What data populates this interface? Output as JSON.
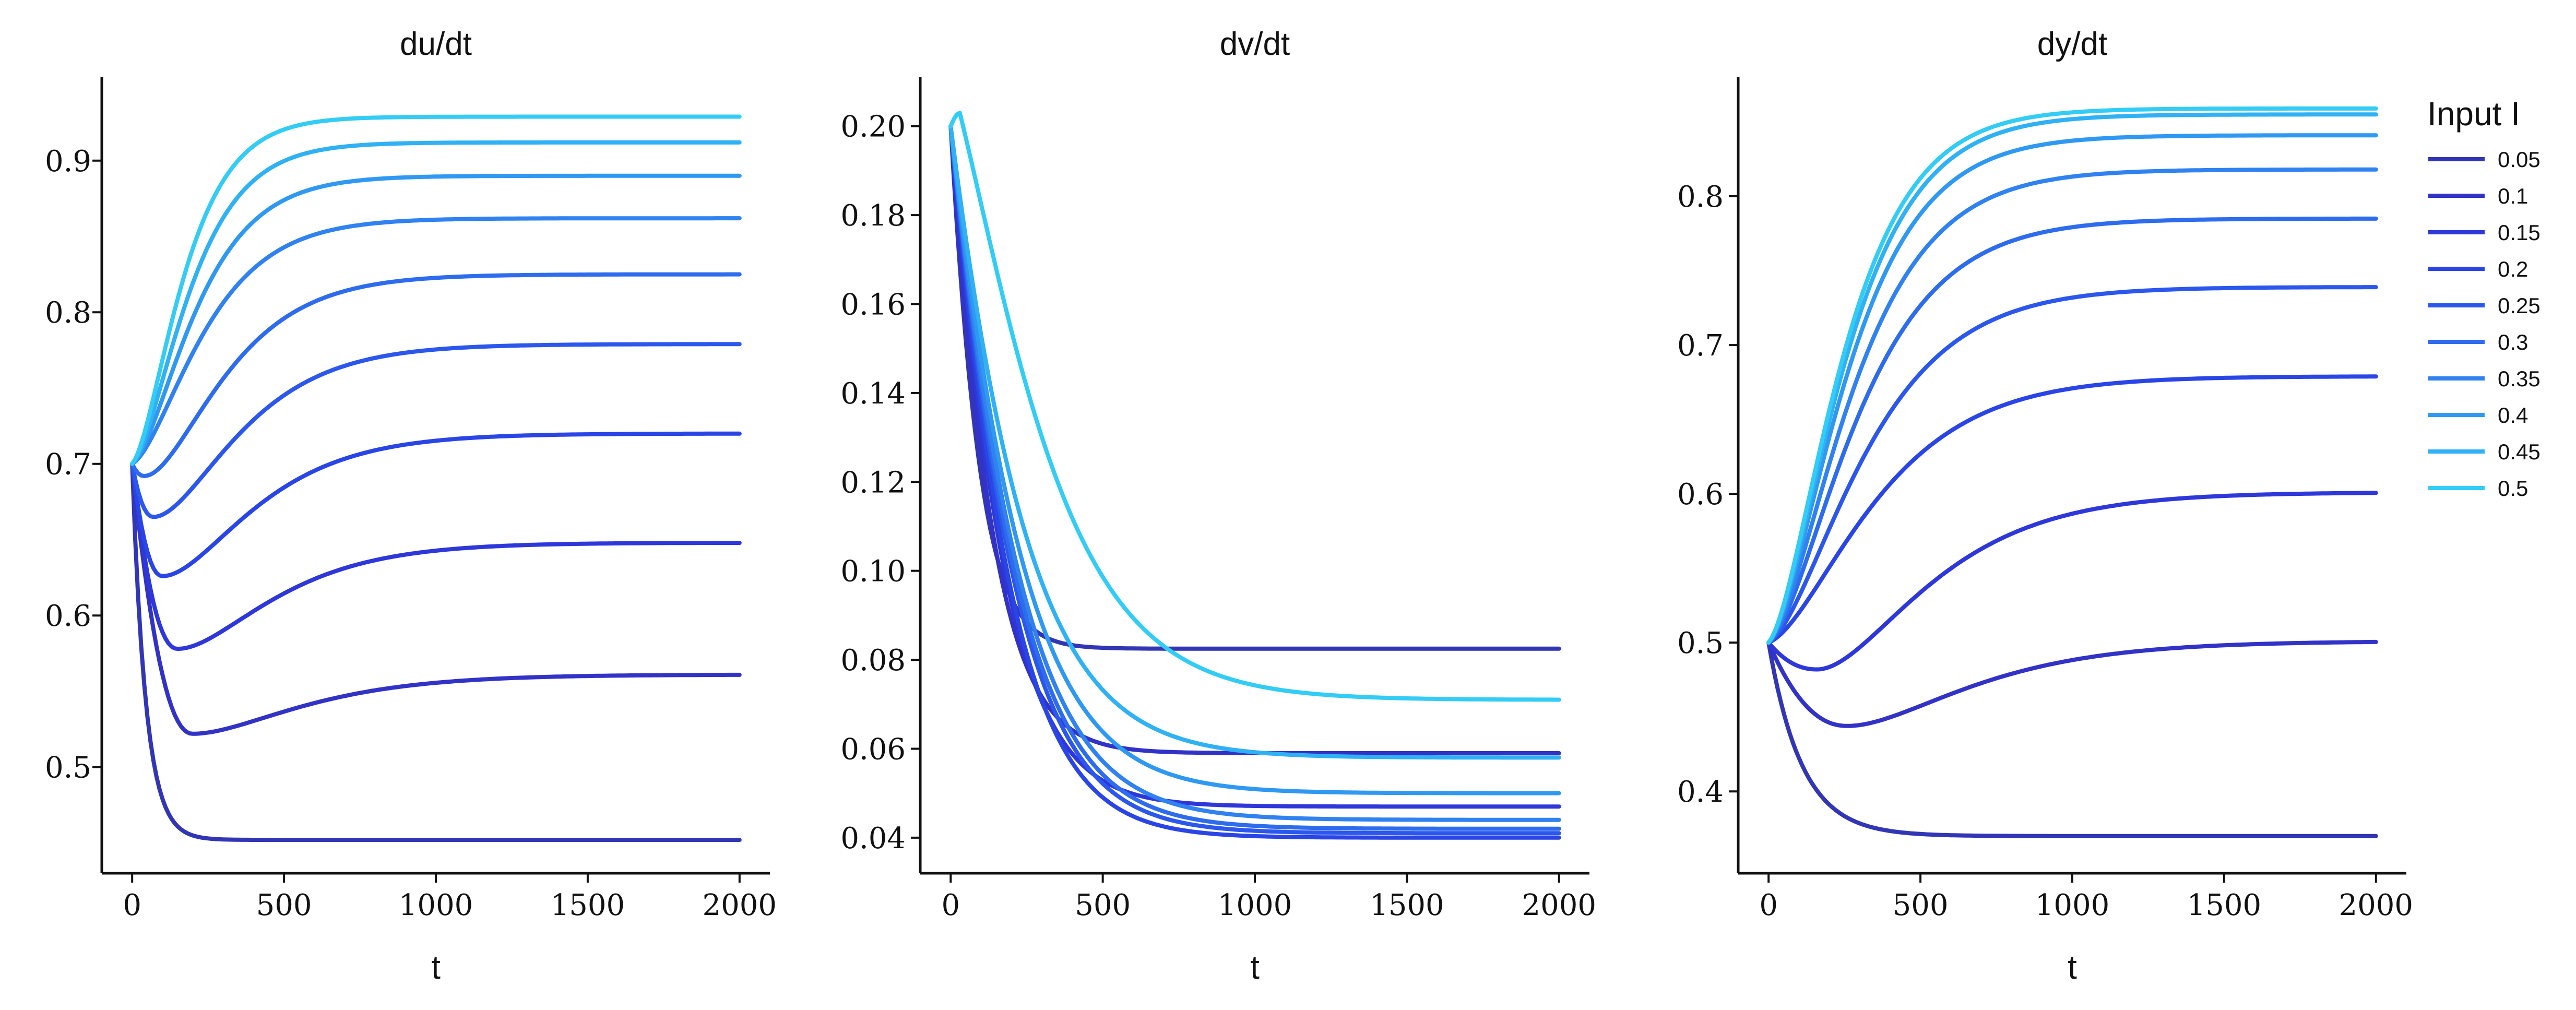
{
  "chart_data": [
    {
      "type": "line",
      "title": "du/dt",
      "xlabel": "t",
      "ylabel": "",
      "xlim": [
        -100,
        2100
      ],
      "ylim": [
        0.43,
        0.955
      ],
      "xticks": [
        0,
        500,
        1000,
        1500,
        2000
      ],
      "yticks": [
        0.5,
        0.6,
        0.7,
        0.8,
        0.9
      ],
      "ytick_labels": [
        "0.5",
        "0.6",
        "0.7",
        "0.8",
        "0.9"
      ],
      "series": [
        {
          "name": "0.05",
          "start": 0.7,
          "final": 0.452,
          "dip": null,
          "dip_t": null,
          "shape": "fast",
          "tau": 45
        },
        {
          "name": "0.1",
          "start": 0.7,
          "final": 0.561,
          "dip": 0.522,
          "dip_t": 200,
          "shape": "dip",
          "tau_rise": 230
        },
        {
          "name": "0.15",
          "start": 0.7,
          "final": 0.648,
          "dip": 0.578,
          "dip_t": 150,
          "shape": "dip",
          "tau_rise": 200
        },
        {
          "name": "0.2",
          "start": 0.7,
          "final": 0.72,
          "dip": 0.626,
          "dip_t": 100,
          "shape": "dip",
          "tau_rise": 190
        },
        {
          "name": "0.25",
          "start": 0.7,
          "final": 0.779,
          "dip": 0.665,
          "dip_t": 70,
          "shape": "dip",
          "tau_rise": 175
        },
        {
          "name": "0.3",
          "start": 0.7,
          "final": 0.825,
          "dip": 0.692,
          "dip_t": 40,
          "shape": "dip",
          "tau_rise": 160
        },
        {
          "name": "0.35",
          "start": 0.7,
          "final": 0.862,
          "dip": null,
          "dip_t": null,
          "shape": "sigmoid",
          "tau": 140
        },
        {
          "name": "0.4",
          "start": 0.7,
          "final": 0.89,
          "dip": null,
          "dip_t": null,
          "shape": "sigmoid",
          "tau": 125
        },
        {
          "name": "0.45",
          "start": 0.7,
          "final": 0.912,
          "dip": null,
          "dip_t": null,
          "shape": "sigmoid",
          "tau": 112
        },
        {
          "name": "0.5",
          "start": 0.7,
          "final": 0.929,
          "dip": null,
          "dip_t": null,
          "shape": "sigmoid",
          "tau": 100
        }
      ]
    },
    {
      "type": "line",
      "title": "dv/dt",
      "xlabel": "t",
      "ylabel": "",
      "xlim": [
        -100,
        2100
      ],
      "ylim": [
        0.032,
        0.211
      ],
      "xticks": [
        0,
        500,
        1000,
        1500,
        2000
      ],
      "yticks": [
        0.04,
        0.06,
        0.08,
        0.1,
        0.12,
        0.14,
        0.16,
        0.18,
        0.2
      ],
      "ytick_labels": [
        "0.04",
        "0.06",
        "0.08",
        "0.10",
        "0.12",
        "0.14",
        "0.16",
        "0.18",
        "0.20"
      ],
      "series": [
        {
          "name": "0.05",
          "start": 0.2,
          "final": 0.0825,
          "tau": 65,
          "peak": null
        },
        {
          "name": "0.1",
          "start": 0.2,
          "final": 0.059,
          "tau": 95,
          "peak": null
        },
        {
          "name": "0.15",
          "start": 0.2,
          "final": 0.047,
          "tau": 120,
          "peak": null
        },
        {
          "name": "0.2",
          "start": 0.2,
          "final": 0.04,
          "tau": 135,
          "peak": null
        },
        {
          "name": "0.25",
          "start": 0.2,
          "final": 0.041,
          "tau": 145,
          "peak": null
        },
        {
          "name": "0.3",
          "start": 0.2,
          "final": 0.042,
          "tau": 150,
          "peak": null
        },
        {
          "name": "0.35",
          "start": 0.2,
          "final": 0.044,
          "tau": 155,
          "peak": null
        },
        {
          "name": "0.4",
          "start": 0.2,
          "final": 0.05,
          "tau": 160,
          "peak": null
        },
        {
          "name": "0.45",
          "start": 0.2,
          "final": 0.058,
          "tau": 170,
          "peak": null
        },
        {
          "name": "0.5",
          "start": 0.2,
          "final": 0.071,
          "tau": 190,
          "peak": 0.203
        }
      ]
    },
    {
      "type": "line",
      "title": "dy/dt",
      "xlabel": "t",
      "ylabel": "",
      "xlim": [
        -100,
        2100
      ],
      "ylim": [
        0.345,
        0.88
      ],
      "xticks": [
        0,
        500,
        1000,
        1500,
        2000
      ],
      "yticks": [
        0.4,
        0.5,
        0.6,
        0.7,
        0.8
      ],
      "ytick_labels": [
        "0.4",
        "0.5",
        "0.6",
        "0.7",
        "0.8"
      ],
      "series": [
        {
          "name": "0.05",
          "start": 0.5,
          "final": 0.37,
          "dip": null,
          "dip_t": null,
          "shape": "fast",
          "tau": 110
        },
        {
          "name": "0.1",
          "start": 0.5,
          "final": 0.501,
          "dip": 0.444,
          "dip_t": 260,
          "shape": "dip",
          "tau_rise": 260
        },
        {
          "name": "0.15",
          "start": 0.5,
          "final": 0.601,
          "dip": 0.482,
          "dip_t": 160,
          "shape": "dip",
          "tau_rise": 230
        },
        {
          "name": "0.2",
          "start": 0.5,
          "final": 0.679,
          "dip": null,
          "dip_t": null,
          "shape": "sigmoid",
          "tau": 210
        },
        {
          "name": "0.25",
          "start": 0.5,
          "final": 0.739,
          "dip": null,
          "dip_t": null,
          "shape": "sigmoid",
          "tau": 190
        },
        {
          "name": "0.3",
          "start": 0.5,
          "final": 0.785,
          "dip": null,
          "dip_t": null,
          "shape": "sigmoid",
          "tau": 175
        },
        {
          "name": "0.35",
          "start": 0.5,
          "final": 0.818,
          "dip": null,
          "dip_t": null,
          "shape": "sigmoid",
          "tau": 165
        },
        {
          "name": "0.4",
          "start": 0.5,
          "final": 0.841,
          "dip": null,
          "dip_t": null,
          "shape": "sigmoid",
          "tau": 155
        },
        {
          "name": "0.45",
          "start": 0.5,
          "final": 0.855,
          "dip": null,
          "dip_t": null,
          "shape": "sigmoid",
          "tau": 150
        },
        {
          "name": "0.5",
          "start": 0.5,
          "final": 0.859,
          "dip": null,
          "dip_t": null,
          "shape": "sigmoid",
          "tau": 145
        }
      ]
    }
  ],
  "legend": {
    "title": "Input I",
    "placement": "right",
    "entries": [
      "0.05",
      "0.1",
      "0.15",
      "0.2",
      "0.25",
      "0.3",
      "0.35",
      "0.4",
      "0.45",
      "0.5"
    ]
  },
  "colors": [
    "#3236b4",
    "#3233c6",
    "#2e37d9",
    "#2a45e6",
    "#2c57ec",
    "#2e6cee",
    "#2f82f0",
    "#2f99f2",
    "#2fb1f4",
    "#33ccf4"
  ]
}
